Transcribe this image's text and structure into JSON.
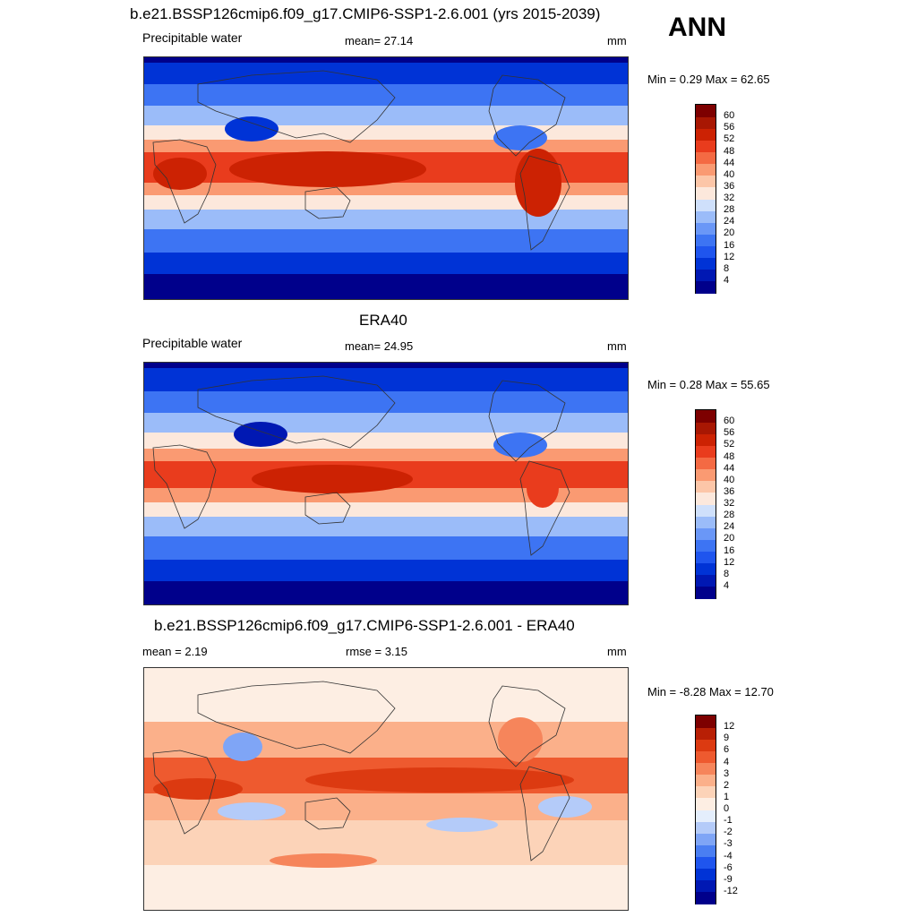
{
  "header": {
    "main_title": "b.e21.BSSP126cmip6.f09_g17.CMIP6-SSP1-2.6.001 (yrs 2015-2039)",
    "season": "ANN"
  },
  "colors": {
    "abs_scale": [
      "#00008b",
      "#0018b3",
      "#0033d6",
      "#1f55ee",
      "#3d74f3",
      "#6a97f7",
      "#9bbcf9",
      "#cfe0fb",
      "#fce8dc",
      "#fcc6a8",
      "#fa9a72",
      "#f46a43",
      "#e93c1d",
      "#cc2203",
      "#a81703",
      "#7d0000"
    ],
    "diff_scale": [
      "#00008b",
      "#0018b3",
      "#0033d6",
      "#1f55ee",
      "#4a7ef2",
      "#7fa5f6",
      "#b4cbf9",
      "#e4eefc",
      "#fdeee3",
      "#fcd3b8",
      "#fbb08a",
      "#f6855b",
      "#ee5a2f",
      "#dc3a11",
      "#b81f05",
      "#7d0000"
    ],
    "land_outline": "#333333"
  },
  "panels": [
    {
      "title": "",
      "left_label": "Precipitable water",
      "center_label": "mean=  27.14",
      "units": "mm",
      "range_text": "Min =   0.29 Max =  62.65",
      "colorbar_ticks": [
        "60",
        "56",
        "52",
        "48",
        "44",
        "40",
        "36",
        "32",
        "28",
        "24",
        "20",
        "16",
        "12",
        "8",
        "4"
      ]
    },
    {
      "title": "ERA40",
      "left_label": "Precipitable water",
      "center_label": "mean=  24.95",
      "units": "mm",
      "range_text": "Min =   0.28 Max =  55.65",
      "colorbar_ticks": [
        "60",
        "56",
        "52",
        "48",
        "44",
        "40",
        "36",
        "32",
        "28",
        "24",
        "20",
        "16",
        "12",
        "8",
        "4"
      ]
    },
    {
      "title": "b.e21.BSSP126cmip6.f09_g17.CMIP6-SSP1-2.6.001 - ERA40",
      "left_label": "mean =   2.19",
      "center_label": "rmse =   3.15",
      "units": "mm",
      "range_text": "Min =  -8.28 Max =  12.70",
      "colorbar_ticks": [
        "12",
        "9",
        "6",
        "4",
        "3",
        "2",
        "1",
        "0",
        "-1",
        "-2",
        "-3",
        "-4",
        "-6",
        "-9",
        "-12"
      ]
    }
  ]
}
